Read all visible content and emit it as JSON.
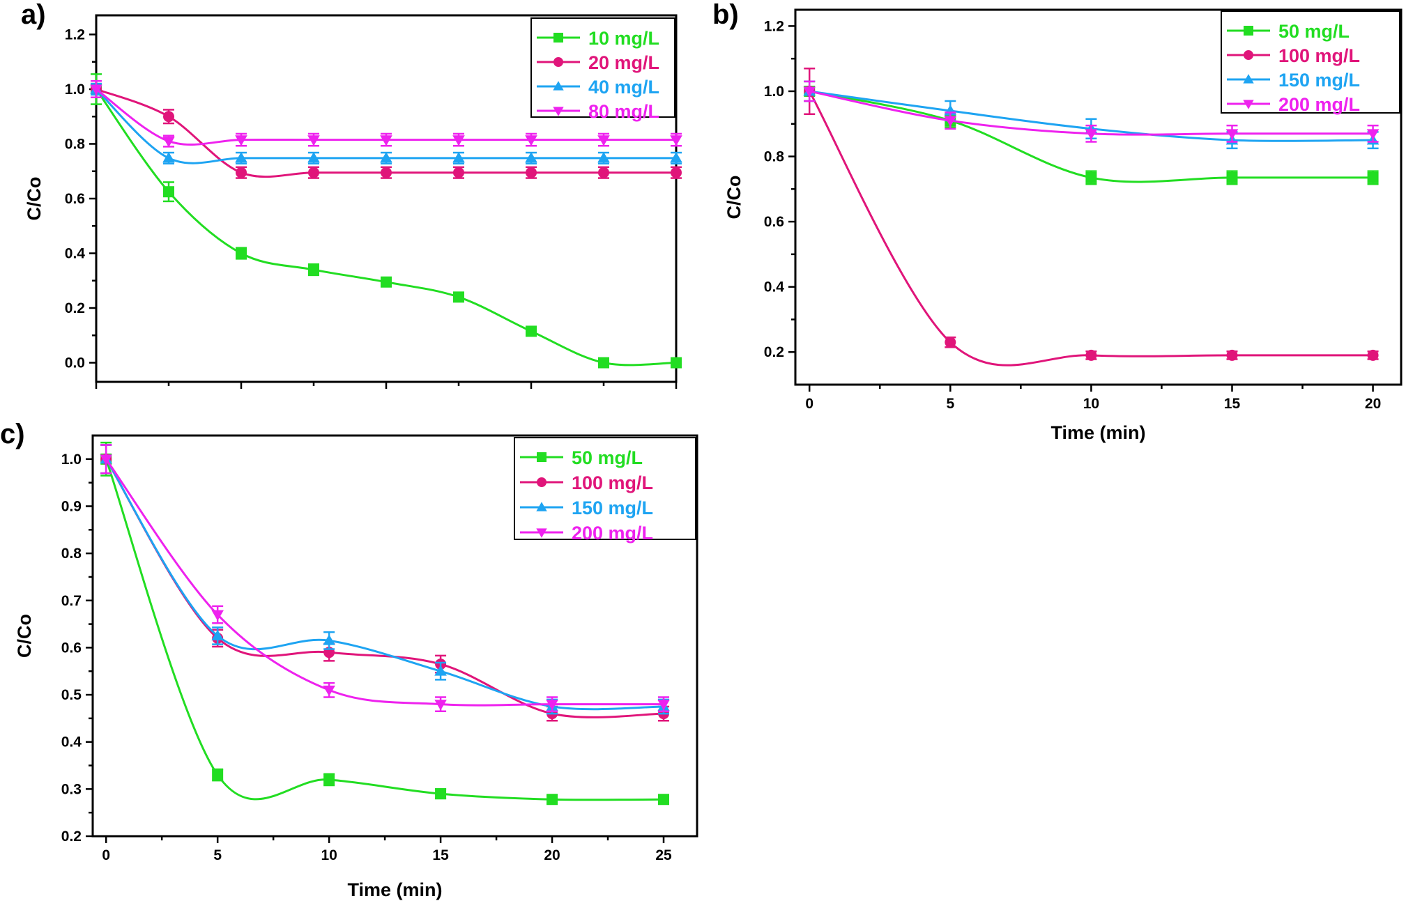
{
  "colors": {
    "green": "#22dd22",
    "crimson": "#e0157a",
    "blue": "#1ea4f2",
    "magenta": "#ee22ee"
  },
  "chart_data": [
    {
      "id": "a",
      "panel_label": "a)",
      "type": "line",
      "ylabel": "C/Co",
      "xlabel": "",
      "xlim": [
        0,
        8
      ],
      "ylim": [
        -0.07,
        1.27
      ],
      "yticks": [
        "0.0",
        "0.2",
        "0.4",
        "0.6",
        "0.8",
        "1.0",
        "1.2"
      ],
      "yticks_values": [
        0,
        0.2,
        0.4,
        0.6,
        0.8,
        1.0,
        1.2
      ],
      "xticks": [
        "",
        "",
        "",
        "",
        ""
      ],
      "xticks_values": [
        0,
        2,
        4,
        6,
        8
      ],
      "x": [
        0,
        1,
        2,
        3,
        4,
        5,
        6,
        7,
        8
      ],
      "legend_position": "top-right",
      "series": [
        {
          "name": "10 mg/L",
          "color": "green",
          "marker": "square",
          "values": [
            1.0,
            0.625,
            0.4,
            0.34,
            0.295,
            0.24,
            0.115,
            0.0,
            0.0
          ],
          "errors": [
            0.055,
            0.035,
            0.02,
            0.02,
            0.015,
            0.012,
            0.01,
            0.005,
            0.005
          ]
        },
        {
          "name": "20 mg/L",
          "color": "crimson",
          "marker": "circle",
          "values": [
            1.0,
            0.9,
            0.695,
            0.695,
            0.695,
            0.695,
            0.695,
            0.695,
            0.695
          ],
          "errors": [
            0.02,
            0.025,
            0.02,
            0.02,
            0.02,
            0.02,
            0.02,
            0.02,
            0.02
          ]
        },
        {
          "name": "40 mg/L",
          "color": "blue",
          "marker": "triangle-up",
          "values": [
            1.0,
            0.748,
            0.748,
            0.748,
            0.748,
            0.748,
            0.748,
            0.748,
            0.748
          ],
          "errors": [
            0.02,
            0.02,
            0.02,
            0.02,
            0.02,
            0.02,
            0.02,
            0.02,
            0.02
          ]
        },
        {
          "name": "80 mg/L",
          "color": "magenta",
          "marker": "triangle-down",
          "values": [
            1.0,
            0.81,
            0.815,
            0.815,
            0.815,
            0.815,
            0.815,
            0.815,
            0.815
          ],
          "errors": [
            0.03,
            0.02,
            0.022,
            0.022,
            0.022,
            0.022,
            0.022,
            0.022,
            0.022
          ]
        }
      ]
    },
    {
      "id": "b",
      "panel_label": "b)",
      "type": "line",
      "ylabel": "C/Co",
      "xlabel": "Time (min)",
      "xlim": [
        -0.5,
        21.0
      ],
      "ylim": [
        0.1,
        1.25
      ],
      "yticks": [
        "0.2",
        "0.4",
        "0.6",
        "0.8",
        "1.0",
        "1.2"
      ],
      "yticks_values": [
        0.2,
        0.4,
        0.6,
        0.8,
        1.0,
        1.2
      ],
      "xticks": [
        "0",
        "5",
        "10",
        "15",
        "20"
      ],
      "xticks_values": [
        0,
        5,
        10,
        15,
        20
      ],
      "x": [
        0,
        5,
        10,
        15,
        20
      ],
      "legend_position": "top-right",
      "series": [
        {
          "name": "50 mg/L",
          "color": "green",
          "marker": "square",
          "values": [
            1.0,
            0.91,
            0.735,
            0.735,
            0.735
          ],
          "errors": [
            0.03,
            0.02,
            0.02,
            0.02,
            0.02
          ]
        },
        {
          "name": "100 mg/L",
          "color": "crimson",
          "marker": "circle",
          "values": [
            1.0,
            0.23,
            0.19,
            0.19,
            0.19
          ],
          "errors": [
            0.07,
            0.015,
            0.012,
            0.012,
            0.012
          ]
        },
        {
          "name": "150 mg/L",
          "color": "blue",
          "marker": "triangle-up",
          "values": [
            1.0,
            0.94,
            0.885,
            0.85,
            0.85
          ],
          "errors": [
            0.03,
            0.03,
            0.03,
            0.025,
            0.025
          ]
        },
        {
          "name": "200 mg/L",
          "color": "magenta",
          "marker": "triangle-down",
          "values": [
            1.0,
            0.91,
            0.87,
            0.87,
            0.87
          ],
          "errors": [
            0.03,
            0.025,
            0.025,
            0.025,
            0.025
          ]
        }
      ]
    },
    {
      "id": "c",
      "panel_label": "c)",
      "type": "line",
      "ylabel": "C/Co",
      "xlabel": "Time (min)",
      "xlim": [
        -0.6,
        26.5
      ],
      "ylim": [
        0.2,
        1.05
      ],
      "yticks": [
        "0.2",
        "0.3",
        "0.4",
        "0.5",
        "0.6",
        "0.7",
        "0.8",
        "0.9",
        "1.0"
      ],
      "yticks_values": [
        0.2,
        0.3,
        0.4,
        0.5,
        0.6,
        0.7,
        0.8,
        0.9,
        1.0
      ],
      "xticks": [
        "0",
        "5",
        "10",
        "15",
        "20",
        "25"
      ],
      "xticks_values": [
        0,
        5,
        10,
        15,
        20,
        25
      ],
      "x": [
        0,
        5,
        10,
        15,
        20,
        25
      ],
      "legend_position": "top-right",
      "series": [
        {
          "name": "50 mg/L",
          "color": "green",
          "marker": "square",
          "values": [
            1.0,
            0.33,
            0.32,
            0.29,
            0.278,
            0.278
          ],
          "errors": [
            0.035,
            0.012,
            0.012,
            0.01,
            0.008,
            0.008
          ]
        },
        {
          "name": "100 mg/L",
          "color": "crimson",
          "marker": "circle",
          "values": [
            1.0,
            0.62,
            0.59,
            0.565,
            0.46,
            0.46
          ],
          "errors": [
            0.03,
            0.018,
            0.018,
            0.018,
            0.015,
            0.015
          ]
        },
        {
          "name": "150 mg/L",
          "color": "blue",
          "marker": "triangle-up",
          "values": [
            1.0,
            0.625,
            0.615,
            0.55,
            0.475,
            0.475
          ],
          "errors": [
            0.03,
            0.018,
            0.018,
            0.018,
            0.015,
            0.015
          ]
        },
        {
          "name": "200 mg/L",
          "color": "magenta",
          "marker": "triangle-down",
          "values": [
            1.0,
            0.67,
            0.51,
            0.48,
            0.48,
            0.48
          ],
          "errors": [
            0.03,
            0.018,
            0.015,
            0.015,
            0.015,
            0.015
          ]
        }
      ]
    }
  ]
}
